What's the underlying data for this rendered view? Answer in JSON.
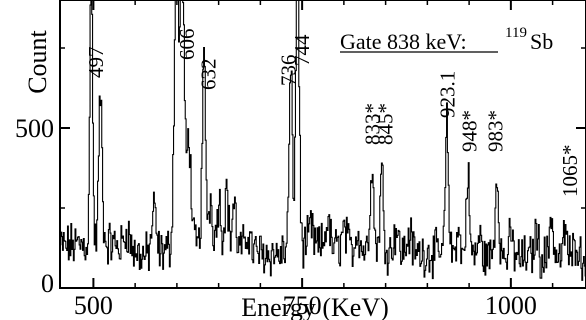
{
  "chart_data": {
    "type": "line",
    "xlabel": "Energy (KeV)",
    "ylabel": "Count",
    "xlim": [
      460,
      1090
    ],
    "ylim": [
      0,
      900
    ],
    "x_ticks": [
      {
        "value": 500,
        "label": "500"
      },
      {
        "value": 750,
        "label": "750"
      },
      {
        "value": 1000,
        "label": "1000"
      }
    ],
    "y_ticks": [
      {
        "value": 0,
        "label": "0"
      },
      {
        "value": 500,
        "label": "500"
      }
    ],
    "gate": {
      "prefix": "Gate 838 keV:",
      "mass": "119",
      "element": "Sb"
    },
    "peak_labels": [
      {
        "energy": 497,
        "label": "497"
      },
      {
        "energy": 606,
        "label": "606"
      },
      {
        "energy": 632,
        "label": "632"
      },
      {
        "energy": 736,
        "label": "736"
      },
      {
        "energy": 744,
        "label": "744"
      },
      {
        "energy": 833,
        "label": "833*"
      },
      {
        "energy": 845,
        "label": "845*"
      },
      {
        "energy": 923.1,
        "label": "923.1"
      },
      {
        "energy": 948,
        "label": "948*"
      },
      {
        "energy": 983,
        "label": "983*"
      },
      {
        "energy": 1065,
        "label": "1065*"
      }
    ],
    "series": [
      {
        "baseline": [
          [
            460,
            130
          ],
          [
            480,
            135
          ],
          [
            500,
            140
          ],
          [
            520,
            140
          ],
          [
            540,
            120
          ],
          [
            560,
            100
          ],
          [
            580,
            110
          ],
          [
            600,
            135
          ],
          [
            620,
            130
          ],
          [
            640,
            160
          ],
          [
            660,
            140
          ],
          [
            680,
            120
          ],
          [
            700,
            110
          ],
          [
            720,
            105
          ],
          [
            740,
            120
          ],
          [
            760,
            130
          ],
          [
            780,
            130
          ],
          [
            800,
            120
          ],
          [
            820,
            120
          ],
          [
            840,
            125
          ],
          [
            860,
            115
          ],
          [
            880,
            110
          ],
          [
            900,
            110
          ],
          [
            920,
            110
          ],
          [
            940,
            105
          ],
          [
            960,
            100
          ],
          [
            980,
            100
          ],
          [
            1000,
            95
          ],
          [
            1020,
            95
          ],
          [
            1040,
            95
          ],
          [
            1060,
            95
          ],
          [
            1090,
            90
          ]
        ],
        "peaks": [
          {
            "e": 497,
            "h": 900,
            "w": 1.5
          },
          {
            "e": 508,
            "h": 460,
            "w": 2.0
          },
          {
            "e": 540,
            "h": 60,
            "w": 3.0
          },
          {
            "e": 572,
            "h": 140,
            "w": 2.5
          },
          {
            "e": 599,
            "h": 900,
            "w": 2.5
          },
          {
            "e": 606,
            "h": 860,
            "w": 2.5
          },
          {
            "e": 614,
            "h": 340,
            "w": 2.5
          },
          {
            "e": 632,
            "h": 560,
            "w": 2.0
          },
          {
            "e": 640,
            "h": 120,
            "w": 2.0
          },
          {
            "e": 650,
            "h": 130,
            "w": 2.0
          },
          {
            "e": 659,
            "h": 170,
            "w": 2.0
          },
          {
            "e": 668,
            "h": 140,
            "w": 2.0
          },
          {
            "e": 685,
            "h": 60,
            "w": 2.5
          },
          {
            "e": 736,
            "h": 550,
            "w": 2.0
          },
          {
            "e": 744,
            "h": 900,
            "w": 2.0
          },
          {
            "e": 760,
            "h": 60,
            "w": 2.5
          },
          {
            "e": 780,
            "h": 80,
            "w": 2.5
          },
          {
            "e": 800,
            "h": 60,
            "w": 3.0
          },
          {
            "e": 816,
            "h": 60,
            "w": 2.5
          },
          {
            "e": 833,
            "h": 270,
            "w": 2.0
          },
          {
            "e": 845,
            "h": 240,
            "w": 2.0
          },
          {
            "e": 862,
            "h": 70,
            "w": 2.5
          },
          {
            "e": 878,
            "h": 60,
            "w": 2.5
          },
          {
            "e": 923,
            "h": 400,
            "w": 1.8
          },
          {
            "e": 936,
            "h": 80,
            "w": 2.0
          },
          {
            "e": 948,
            "h": 260,
            "w": 1.8
          },
          {
            "e": 962,
            "h": 60,
            "w": 2.0
          },
          {
            "e": 983,
            "h": 240,
            "w": 2.2
          },
          {
            "e": 1000,
            "h": 60,
            "w": 2.5
          },
          {
            "e": 1030,
            "h": 80,
            "w": 2.5
          },
          {
            "e": 1048,
            "h": 140,
            "w": 2.0
          },
          {
            "e": 1065,
            "h": 90,
            "w": 2.0
          },
          {
            "e": 1078,
            "h": 60,
            "w": 2.5
          }
        ]
      }
    ]
  }
}
